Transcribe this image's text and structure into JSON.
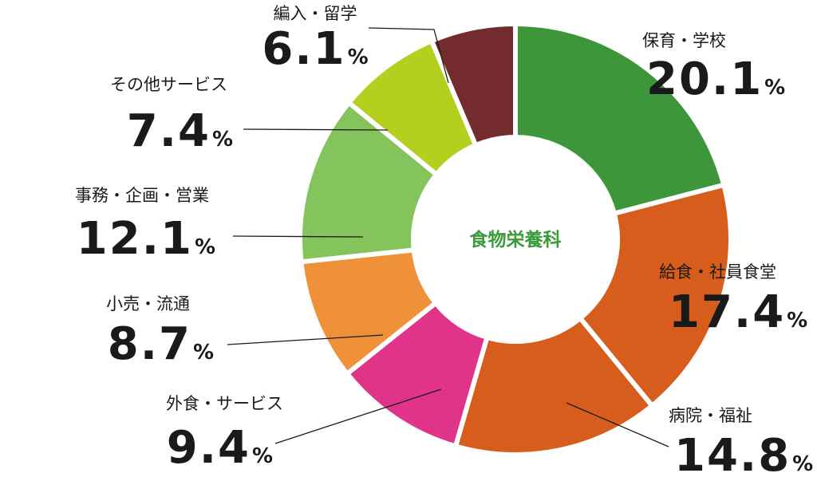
{
  "chart_data": {
    "type": "pie",
    "center_label": "食物栄養科",
    "unit": "%",
    "slices": [
      {
        "label": "保育・学校",
        "value": 20.1,
        "display": "20.1",
        "color": "#3d963a"
      },
      {
        "label": "給食・社員食堂",
        "value": 17.4,
        "display": "17.4",
        "color": "#d75d1c"
      },
      {
        "label": "病院・福祉",
        "value": 14.8,
        "display": "14.8",
        "color": "#d75d1c"
      },
      {
        "label": "外食・サービス",
        "value": 9.4,
        "display": "9.4",
        "color": "#e0348b"
      },
      {
        "label": "小売・流通",
        "value": 8.7,
        "display": "8.7",
        "color": "#ef9139"
      },
      {
        "label": "事務・企画・営業",
        "value": 12.1,
        "display": "12.1",
        "color": "#85c35d"
      },
      {
        "label": "その他サービス",
        "value": 7.4,
        "display": "7.4",
        "color": "#b5cf1f"
      },
      {
        "label": "編入・留学",
        "value": 6.1,
        "display": "6.1",
        "color": "#732b2d"
      }
    ]
  }
}
